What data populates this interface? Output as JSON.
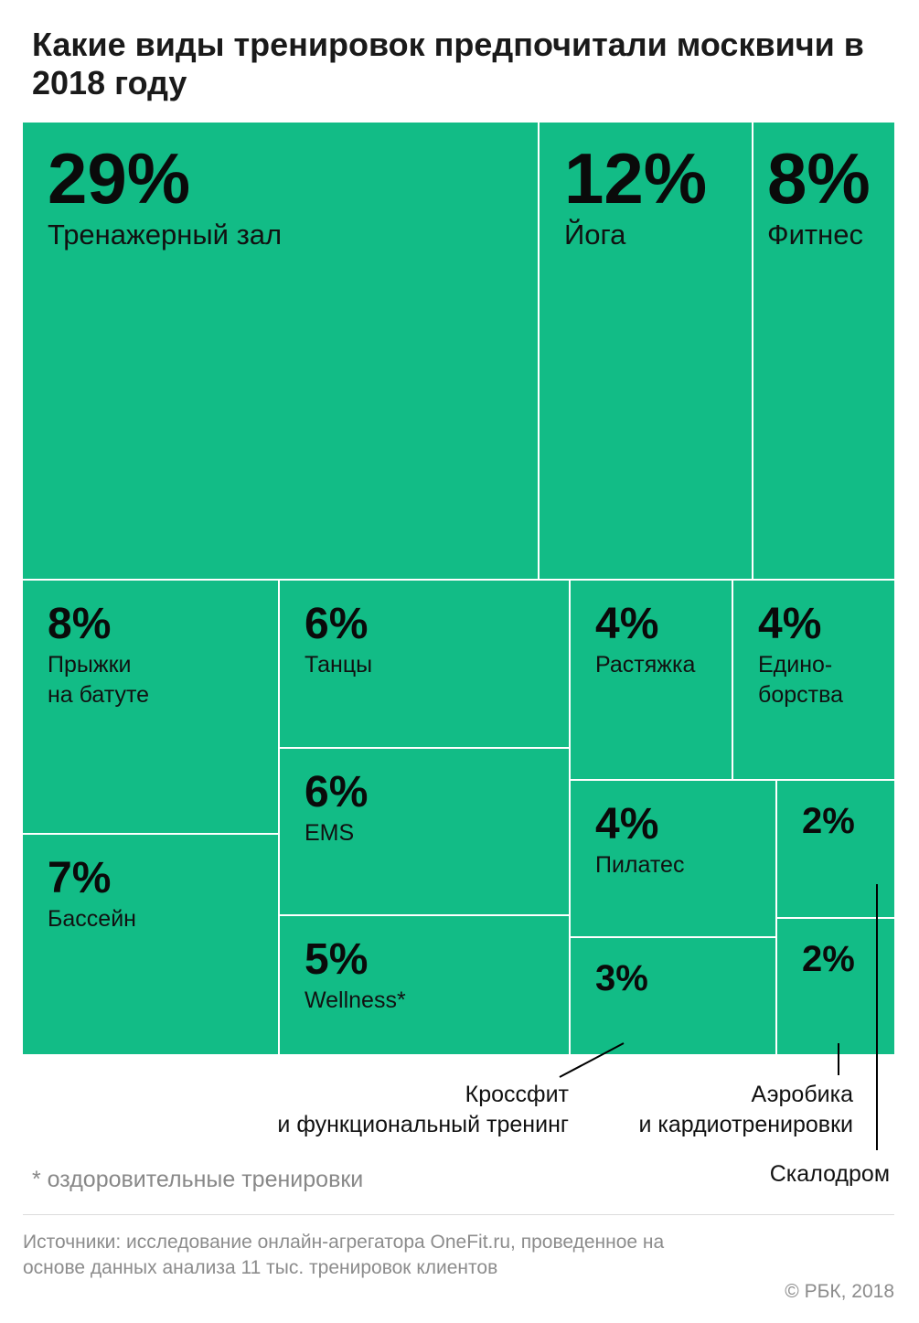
{
  "title": "Какие виды тренировок предпочитали москвичи в 2018 году",
  "chart_data": {
    "type": "treemap",
    "cells": [
      {
        "percent": "29%",
        "value": 29,
        "label": "Тренажерный зал"
      },
      {
        "percent": "12%",
        "value": 12,
        "label": "Йога"
      },
      {
        "percent": "8%",
        "value": 8,
        "label": "Фитнес"
      },
      {
        "percent": "8%",
        "value": 8,
        "label": "Прыжки\nна батуте"
      },
      {
        "percent": "7%",
        "value": 7,
        "label": "Бассейн"
      },
      {
        "percent": "6%",
        "value": 6,
        "label": "Танцы"
      },
      {
        "percent": "6%",
        "value": 6,
        "label": "EMS"
      },
      {
        "percent": "5%",
        "value": 5,
        "label": "Wellness*"
      },
      {
        "percent": "4%",
        "value": 4,
        "label": "Растяжка"
      },
      {
        "percent": "4%",
        "value": 4,
        "label": "Едино-\nборства"
      },
      {
        "percent": "4%",
        "value": 4,
        "label": "Пилатес"
      },
      {
        "percent": "3%",
        "value": 3,
        "label": "Кроссфит\nи функциональный тренинг"
      },
      {
        "percent": "2%",
        "value": 2,
        "label": "Скалодром"
      },
      {
        "percent": "2%",
        "value": 2,
        "label": "Аэробика\nи кардиотренировки"
      }
    ]
  },
  "colors": {
    "cell": "#12bc86",
    "border": "#ffffff",
    "text": "#0a0a0a"
  },
  "footnote": "* оздоровительные тренировки",
  "source": "Источники: исследование онлайн-агрегатора OneFit.ru, проведенное на основе данных анализа 11 тыс. тренировок клиентов",
  "copyright": "© РБК, 2018"
}
